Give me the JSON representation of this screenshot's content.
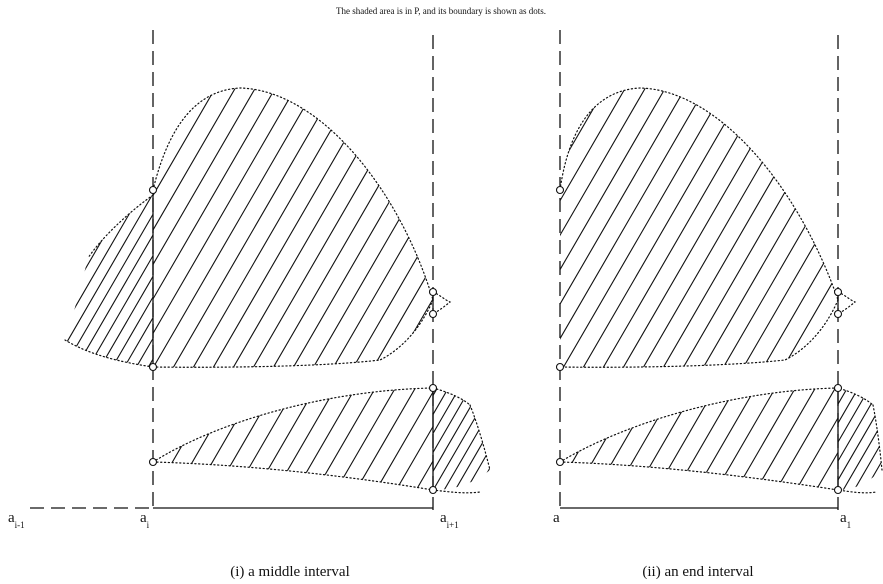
{
  "note": "The shaded area is in P, and its boundary is shown as dots.",
  "panels": [
    {
      "caption": "(i) a middle interval",
      "labels": [
        {
          "base": "a",
          "sub": "i-1"
        },
        {
          "base": "a",
          "sub": "i"
        },
        {
          "base": "a",
          "sub": "i+1"
        }
      ]
    },
    {
      "caption": "(ii) an end interval",
      "labels": [
        {
          "base": "a",
          "sub": ""
        },
        {
          "base": "a",
          "sub": "1"
        }
      ]
    }
  ]
}
